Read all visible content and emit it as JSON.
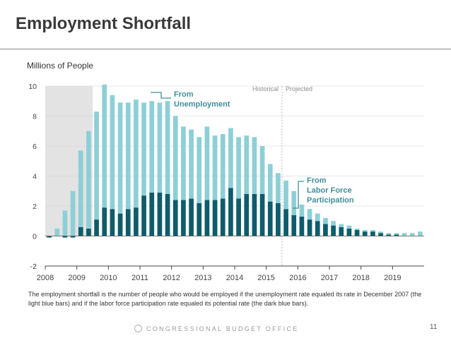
{
  "slide": {
    "title": "Employment Shortfall",
    "note": "The employment shortfall is the number of people who would be employed if the unemployment rate equaled its rate in December 2007 (the light blue bars) and if the labor force participation rate equaled its potential rate (the dark blue bars).",
    "footer": "CONGRESSIONAL BUDGET OFFICE",
    "page_number": "11"
  },
  "colors": {
    "light": "#8ecfd6",
    "dark": "#0e5c6b",
    "shade": "#e3e3e3",
    "grid": "#cfcfcf",
    "axis_text": "#444444",
    "callout": "#3f8f9c"
  },
  "chart_data": {
    "type": "bar",
    "stacked": true,
    "ylabel": "Millions of People",
    "ylim": [
      -2,
      10
    ],
    "yticks": [
      -2,
      0,
      2,
      4,
      6,
      8,
      10
    ],
    "xlabels": [
      "2008",
      "2009",
      "2010",
      "2011",
      "2012",
      "2013",
      "2014",
      "2015",
      "2016",
      "2017",
      "2018",
      "2019"
    ],
    "x_start": 2008,
    "bars_per_year": 4,
    "recession_shading": {
      "from": 2008.0,
      "to": 2009.5
    },
    "divider": {
      "at": 2015.5,
      "left_label": "Historical",
      "right_label": "Projected"
    },
    "series": [
      {
        "name": "From Unemployment",
        "values": [
          0.0,
          0.5,
          1.7,
          3.0,
          5.1,
          6.5,
          7.2,
          8.2,
          7.6,
          7.4,
          7.1,
          7.2,
          6.2,
          6.1,
          6.0,
          6.2,
          5.6,
          4.9,
          4.6,
          4.4,
          4.9,
          4.3,
          4.3,
          4.0,
          4.1,
          3.9,
          3.8,
          3.2,
          2.5,
          2.0,
          1.9,
          1.6,
          0.8,
          0.7,
          0.5,
          0.4,
          0.3,
          0.2,
          0.2,
          0.1,
          0.1,
          0.1,
          0.1,
          0.1,
          0.1,
          0.2,
          0.2,
          0.3
        ]
      },
      {
        "name": "From Labor Force Participation",
        "values": [
          -0.1,
          0.0,
          -0.1,
          -0.1,
          0.6,
          0.5,
          1.1,
          1.9,
          1.8,
          1.5,
          1.8,
          1.9,
          2.7,
          2.9,
          2.9,
          2.8,
          2.4,
          2.4,
          2.5,
          2.2,
          2.4,
          2.4,
          2.5,
          3.2,
          2.5,
          2.8,
          2.8,
          2.8,
          2.3,
          2.2,
          1.8,
          1.4,
          1.3,
          1.1,
          1.0,
          0.8,
          0.7,
          0.6,
          0.5,
          0.4,
          0.3,
          0.3,
          0.2,
          0.1,
          0.1,
          0.0,
          0.0,
          0.0
        ]
      }
    ],
    "callouts": {
      "unemployment": [
        "From",
        "Unemployment"
      ],
      "participation": [
        "From",
        "Labor Force",
        "Participation"
      ]
    }
  }
}
